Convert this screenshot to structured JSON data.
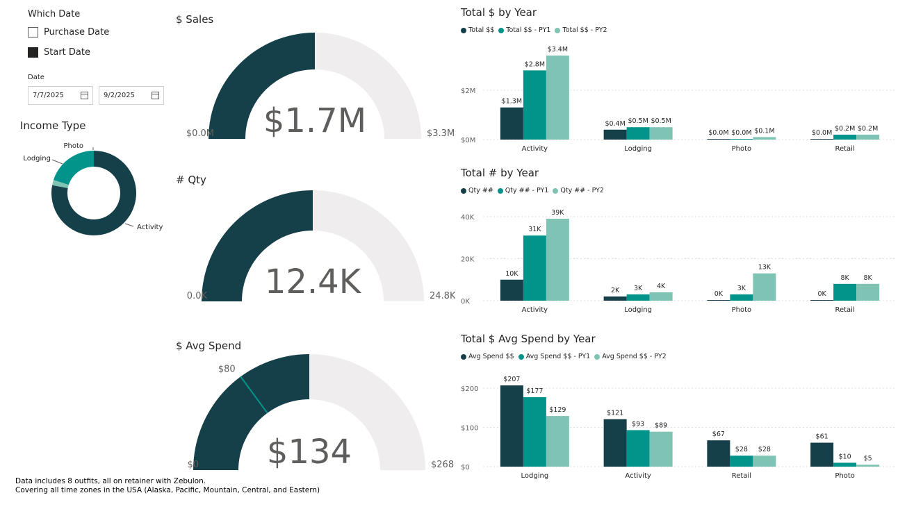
{
  "colors": {
    "dark": "#15404a",
    "mid": "#02948b",
    "light": "#7fc3b4",
    "track": "#efeded"
  },
  "slicer": {
    "title": "Which Date",
    "options": [
      {
        "label": "Purchase Date",
        "checked": false
      },
      {
        "label": "Start Date",
        "checked": true
      }
    ]
  },
  "date_filter": {
    "label": "Date",
    "start": "7/7/2025",
    "end": "9/2/2025"
  },
  "income_type": {
    "title": "Income Type",
    "slices": [
      {
        "label": "Activity",
        "value": 0.78,
        "color": "#15404a"
      },
      {
        "label": "Photo",
        "value": 0.02,
        "color": "#7fc3b4"
      },
      {
        "label": "Lodging",
        "value": 0.2,
        "color": "#02948b"
      }
    ]
  },
  "gauges": [
    {
      "title": "$ Sales",
      "value_label": "$1.7M",
      "min_label": "$0.0M",
      "max_label": "$3.3M",
      "fraction": 0.5
    },
    {
      "title": "# Qty",
      "value_label": "12.4K",
      "min_label": "0.0K",
      "max_label": "24.8K",
      "fraction": 0.5
    },
    {
      "title": "$ Avg Spend",
      "value_label": "$134",
      "min_label": "$0",
      "max_label": "$268",
      "fraction": 0.5,
      "target_label": "$80",
      "target_fraction": 0.2985
    }
  ],
  "chart_data": [
    {
      "type": "bar",
      "title": "Total $ by Year",
      "categories": [
        "Activity",
        "Lodging",
        "Photo",
        "Retail"
      ],
      "series": [
        {
          "name": "Total $$",
          "values": [
            1.3,
            0.4,
            0.0,
            0.0
          ],
          "labels": [
            "$1.3M",
            "$0.4M",
            "$0.0M",
            "$0.0M"
          ]
        },
        {
          "name": "Total $$ - PY1",
          "values": [
            2.8,
            0.5,
            0.0,
            0.2
          ],
          "labels": [
            "$2.8M",
            "$0.5M",
            "$0.0M",
            "$0.2M"
          ]
        },
        {
          "name": "Total $$ - PY2",
          "values": [
            3.4,
            0.5,
            0.1,
            0.2
          ],
          "labels": [
            "$3.4M",
            "$0.5M",
            "$0.1M",
            "$0.2M"
          ]
        }
      ],
      "yticks": [
        0,
        2
      ],
      "ytick_labels": [
        "$0M",
        "$2M"
      ],
      "ylim": [
        0,
        3.4
      ],
      "grid": true,
      "legend": "top-left"
    },
    {
      "type": "bar",
      "title": "Total # by Year",
      "categories": [
        "Activity",
        "Lodging",
        "Photo",
        "Retail"
      ],
      "series": [
        {
          "name": "Qty ##",
          "values": [
            10,
            2,
            0,
            0
          ],
          "labels": [
            "10K",
            "2K",
            "0K",
            "0K"
          ]
        },
        {
          "name": "Qty ## - PY1",
          "values": [
            31,
            3,
            3,
            8
          ],
          "labels": [
            "31K",
            "3K",
            "3K",
            "8K"
          ]
        },
        {
          "name": "Qty ## - PY2",
          "values": [
            39,
            4,
            13,
            8
          ],
          "labels": [
            "39K",
            "4K",
            "13K",
            "8K"
          ]
        }
      ],
      "yticks": [
        0,
        20,
        40
      ],
      "ytick_labels": [
        "0K",
        "20K",
        "40K"
      ],
      "ylim": [
        0,
        40
      ],
      "grid": true,
      "legend": "top-left"
    },
    {
      "type": "bar",
      "title": "Total $ Avg Spend by Year",
      "categories": [
        "Lodging",
        "Activity",
        "Retail",
        "Photo"
      ],
      "series": [
        {
          "name": "Avg Spend $$",
          "values": [
            207,
            121,
            67,
            61
          ],
          "labels": [
            "$207",
            "$121",
            "$67",
            "$61"
          ]
        },
        {
          "name": "Avg Spend $$ - PY1",
          "values": [
            177,
            93,
            28,
            10
          ],
          "labels": [
            "$177",
            "$93",
            "$28",
            "$10"
          ]
        },
        {
          "name": "Avg Spend $$ - PY2",
          "values": [
            129,
            89,
            28,
            5
          ],
          "labels": [
            "$129",
            "$89",
            "$28",
            "$5"
          ]
        }
      ],
      "yticks": [
        0,
        100,
        200
      ],
      "ytick_labels": [
        "$0",
        "$100",
        "$200"
      ],
      "ylim": [
        0,
        207
      ],
      "grid": true,
      "legend": "top-left"
    }
  ],
  "footnote": {
    "line1": "Data includes 8 outfits, all on retainer with Zebulon.",
    "line2": "Covering all time zones in the USA (Alaska, Pacific, Mountain, Central, and Eastern)"
  }
}
